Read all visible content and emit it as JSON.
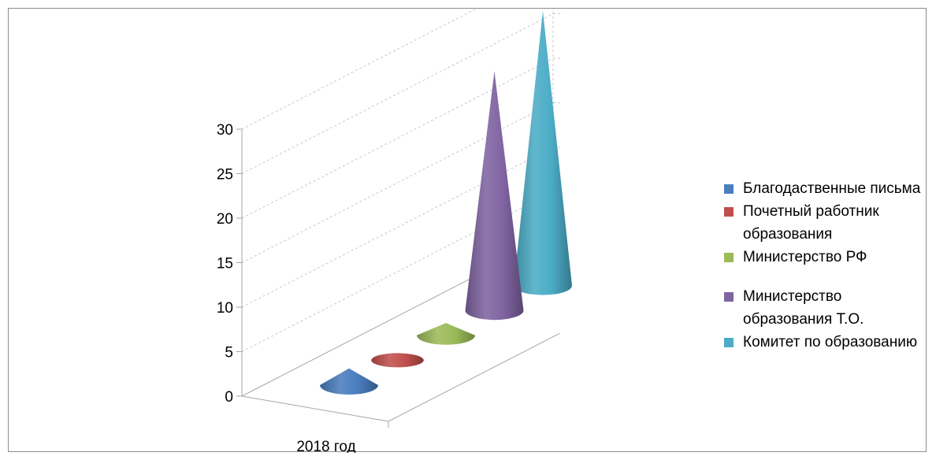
{
  "chart_data": {
    "type": "bar",
    "shape": "cone",
    "title": "",
    "categories": [
      "2018 год"
    ],
    "yticks": [
      "0",
      "5",
      "10",
      "15",
      "20",
      "25",
      "30"
    ],
    "ylim": [
      0,
      30
    ],
    "series": [
      {
        "name": "Благодаственные письма",
        "values": [
          1
        ],
        "color": "#4a7ebf"
      },
      {
        "name": "Почетный работник образования",
        "values": [
          0
        ],
        "color": "#c0504d"
      },
      {
        "name": "Министерство РФ",
        "values": [
          0.5
        ],
        "color": "#9bbb59"
      },
      {
        "name": "Министерство образования Т.О.",
        "values": [
          26
        ],
        "color": "#8064a2"
      },
      {
        "name": "Комитет по образованию",
        "values": [
          30
        ],
        "color": "#4bacc6"
      }
    ],
    "legend": "right",
    "grid": true
  }
}
